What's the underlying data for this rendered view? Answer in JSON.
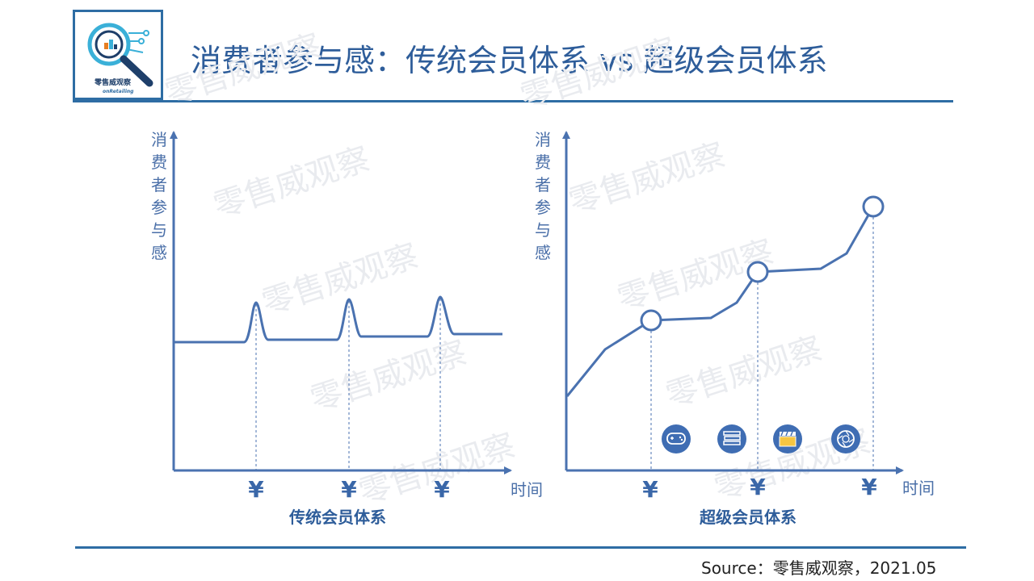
{
  "title": "消费者参与感：传统会员体系 vs 超级会员体系",
  "logo": {
    "main": "零售威观察",
    "sub": "onRetailing"
  },
  "watermark": "零售威观察",
  "left_panel": {
    "y_axis_label": "消费者参与感",
    "x_axis_label": "时间",
    "caption": "传统会员体系",
    "currency_markers": [
      "¥",
      "¥",
      "¥"
    ]
  },
  "right_panel": {
    "y_axis_label": "消费者参与感",
    "x_axis_label": "时间",
    "caption": "超级会员体系",
    "currency_markers": [
      "¥",
      "¥",
      "¥"
    ],
    "benefit_icons": [
      "gamepad-icon",
      "books-icon",
      "clapperboard-icon",
      "camera-aperture-icon"
    ]
  },
  "source": "Source：零售威观察，2021.05",
  "colors": {
    "primary": "#2e6da4",
    "line": "#4a72b0",
    "text": "#2e5d9a",
    "watermark": "#e9ebef"
  }
}
